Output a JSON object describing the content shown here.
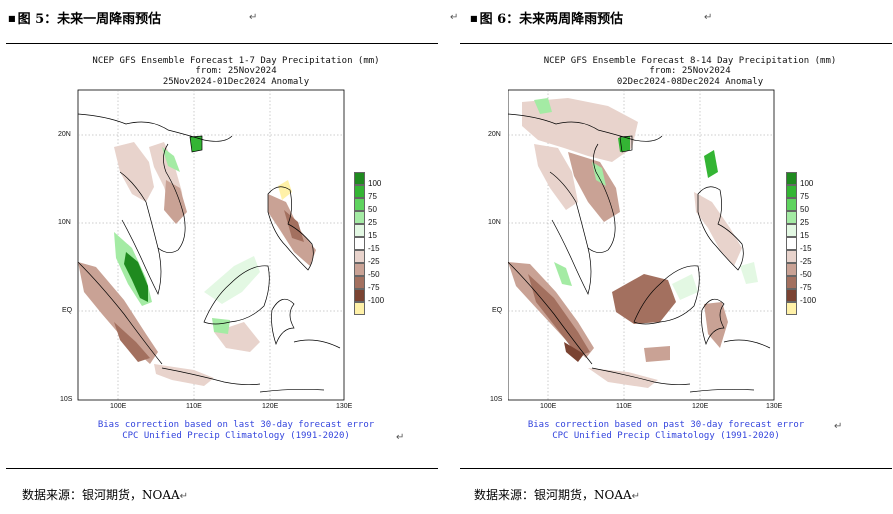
{
  "figures": [
    {
      "title": "图 5：未来一周降雨预估",
      "plot_title_1": "NCEP GFS Ensemble Forecast 1-7 Day Precipitation (mm)",
      "plot_title_2": "from: 25Nov2024",
      "plot_title_3": "25Nov2024-01Dec2024 Anomaly",
      "lat_labels": [
        "20N",
        "10N",
        "EQ",
        "10S"
      ],
      "lon_labels": [
        "100E",
        "110E",
        "120E",
        "130E"
      ],
      "note_1": "Bias correction based on last 30-day forecast error",
      "note_2": "CPC Unified Precip Climatology (1991-2020)",
      "source": "数据来源：银河期货，NOAA"
    },
    {
      "title": "图 6：未来两周降雨预估",
      "plot_title_1": "NCEP GFS Ensemble Forecast 8-14 Day Precipitation (mm)",
      "plot_title_2": "from: 25Nov2024",
      "plot_title_3": "02Dec2024-08Dec2024 Anomaly",
      "lat_labels": [
        "20N",
        "10N",
        "EQ",
        "10S"
      ],
      "lon_labels": [
        "100E",
        "110E",
        "120E",
        "130E"
      ],
      "note_1": "Bias correction based on past 30-day forecast error",
      "note_2": "CPC Unified Precip Climatology (1991-2020)",
      "source": "数据来源：银河期货，NOAA"
    }
  ],
  "legend": [
    {
      "label": "100",
      "color": "#1f8a1f"
    },
    {
      "label": "75",
      "color": "#34b534"
    },
    {
      "label": "50",
      "color": "#5fd35f"
    },
    {
      "label": "25",
      "color": "#a4eba4"
    },
    {
      "label": "15",
      "color": "#e3f8e3"
    },
    {
      "label": "-15",
      "color": "#e8d3cc"
    },
    {
      "label": "-25",
      "color": "#c9a295"
    },
    {
      "label": "-50",
      "color": "#a3705f"
    },
    {
      "label": "-75",
      "color": "#7a4332"
    },
    {
      "label": "-100",
      "color": "#fff1a8"
    }
  ],
  "colors": {
    "wet_light": "#e3f8e3",
    "wet_mid": "#a4eba4",
    "wet_strong": "#34b534",
    "dry_light": "#e8d3cc",
    "dry_mid": "#c9a295",
    "dry_strong": "#a3705f",
    "dry_extreme": "#7a4332",
    "note_text": "#3344dd"
  },
  "return_mark": "↵"
}
